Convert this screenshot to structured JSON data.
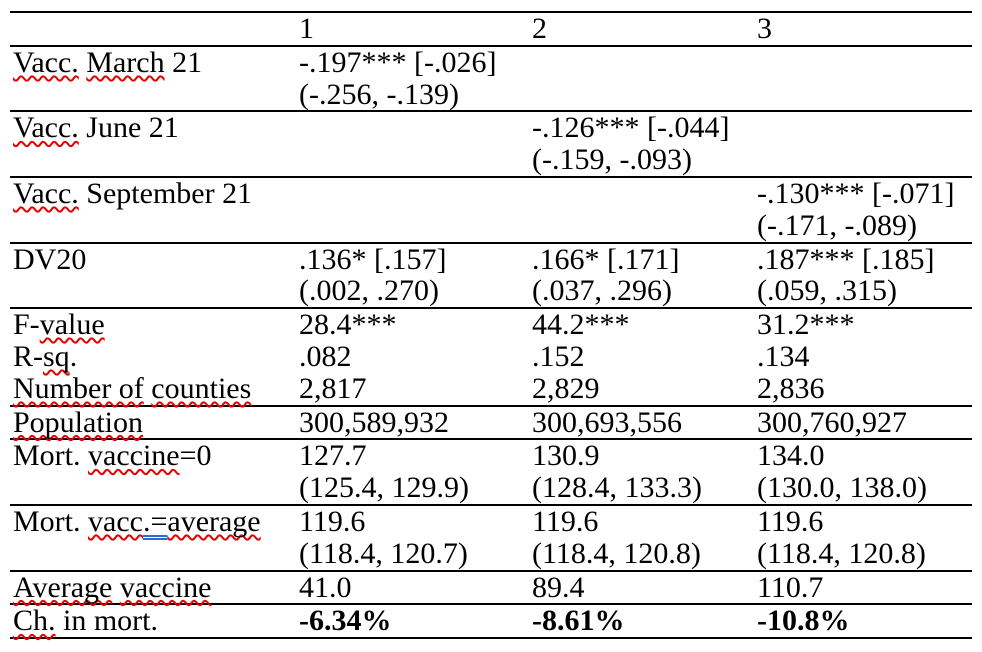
{
  "page": {
    "background": "#ffffff",
    "text_color": "#000000"
  },
  "marks": {
    "spell_color": "#e60000",
    "grammar_color": "#2b6cd4"
  },
  "table": {
    "corner_header": "",
    "columns": [
      "1",
      "2",
      "3"
    ],
    "rows": [
      {
        "label": [
          {
            "t": "Vacc.",
            "m": "sp"
          },
          {
            "t": " "
          },
          {
            "t": "March",
            "m": "sp"
          },
          {
            "t": " 21"
          }
        ],
        "cells": [
          {
            "v": "-.197*** [-.026]",
            "ci": "(-.256, -.139)"
          },
          null,
          null
        ],
        "sep": true
      },
      {
        "label": [
          {
            "t": "Vacc.",
            "m": "sp"
          },
          {
            "t": " June 21"
          }
        ],
        "cells": [
          null,
          {
            "v": "-.126*** [-.044]",
            "ci": "(-.159, -.093)"
          },
          null
        ],
        "sep": true
      },
      {
        "label": [
          {
            "t": "Vacc.",
            "m": "sp"
          },
          {
            "t": " September 21"
          }
        ],
        "cells": [
          null,
          null,
          {
            "v": "-.130*** [-.071]",
            "ci": "(-.171, -.089)"
          }
        ],
        "sep": true
      },
      {
        "label": [
          {
            "t": "DV20"
          }
        ],
        "cells": [
          {
            "v": ".136* [.157]",
            "ci": "(.002, .270)"
          },
          {
            "v": ".166* [.171]",
            "ci": "(.037, .296)"
          },
          {
            "v": ".187*** [.185]",
            "ci": "(.059, .315)"
          }
        ],
        "sep": true
      },
      {
        "label": [
          {
            "t": "F-"
          },
          {
            "t": "value",
            "m": "sp"
          }
        ],
        "cells": [
          {
            "v": "28.4***"
          },
          {
            "v": "44.2***"
          },
          {
            "v": "31.2***"
          }
        ],
        "sep": false
      },
      {
        "label": [
          {
            "t": "R-"
          },
          {
            "t": "sq",
            "m": "sp"
          },
          {
            "t": "."
          }
        ],
        "cells": [
          {
            "v": ".082"
          },
          {
            "v": ".152"
          },
          {
            "v": ".134"
          }
        ],
        "sep": false
      },
      {
        "label": [
          {
            "t": "Number of",
            "m": "sp"
          },
          {
            "t": " "
          },
          {
            "t": "counties",
            "m": "sp"
          }
        ],
        "cells": [
          {
            "v": "2,817"
          },
          {
            "v": "2,829"
          },
          {
            "v": "2,836"
          }
        ],
        "sep": true
      },
      {
        "label": [
          {
            "t": "Population",
            "m": "sp"
          }
        ],
        "cells": [
          {
            "v": "300,589,932"
          },
          {
            "v": "300,693,556"
          },
          {
            "v": "300,760,927"
          }
        ],
        "sep": true
      },
      {
        "label": [
          {
            "t": "Mort. "
          },
          {
            "t": "vaccine",
            "m": "sp"
          },
          {
            "t": "=0"
          }
        ],
        "cells": [
          {
            "v": "127.7",
            "ci": "(125.4, 129.9)"
          },
          {
            "v": "130.9",
            "ci": "(128.4, 133.3)"
          },
          {
            "v": "134.0",
            "ci": "(130.0, 138.0)"
          }
        ],
        "sep": true
      },
      {
        "label": [
          {
            "t": "Mort. "
          },
          {
            "t": "vacc",
            "m": "sp"
          },
          {
            "t": ".=",
            "m": "gr"
          },
          {
            "t": "average",
            "m": "sp"
          }
        ],
        "cells": [
          {
            "v": "119.6",
            "ci": "(118.4, 120.7)"
          },
          {
            "v": "119.6",
            "ci": "(118.4, 120.8)"
          },
          {
            "v": "119.6",
            "ci": "(118.4, 120.8)"
          }
        ],
        "sep": true
      },
      {
        "label": [
          {
            "t": "Average",
            "m": "sp"
          },
          {
            "t": " "
          },
          {
            "t": "vaccine",
            "m": "sp"
          }
        ],
        "cells": [
          {
            "v": "41.0"
          },
          {
            "v": "89.4"
          },
          {
            "v": "110.7"
          }
        ],
        "sep": true
      },
      {
        "label": [
          {
            "t": "Ch.",
            "m": "sp"
          },
          {
            "t": " in mort."
          }
        ],
        "cells": [
          {
            "v": "-6.34%",
            "b": true
          },
          {
            "v": "-8.61%",
            "b": true
          },
          {
            "v": "-10.8%",
            "b": true
          }
        ],
        "sep": true
      }
    ]
  }
}
